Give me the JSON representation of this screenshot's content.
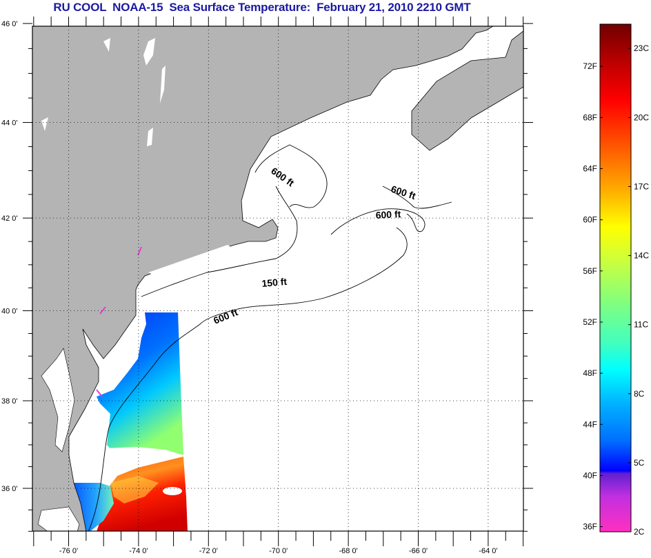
{
  "title": "RU COOL  NOAA-15  Sea Surface Temperature:  February 21, 2010 2210 GMT",
  "map": {
    "lon_range": [
      -77,
      -63
    ],
    "lat_range": [
      35,
      46
    ],
    "lon_labels": [
      {
        "lon": -76,
        "text": "-76 0'"
      },
      {
        "lon": -74,
        "text": "-74 0'"
      },
      {
        "lon": -72,
        "text": "-72 0'"
      },
      {
        "lon": -70,
        "text": "-70 0'"
      },
      {
        "lon": -68,
        "text": "-68 0'"
      },
      {
        "lon": -66,
        "text": "-66 0'"
      },
      {
        "lon": -64,
        "text": "-64 0'"
      }
    ],
    "lat_labels": [
      {
        "lat": 46,
        "text": "46 0'"
      },
      {
        "lat": 44,
        "text": "44 0'"
      },
      {
        "lat": 42,
        "text": "42 0'"
      },
      {
        "lat": 40,
        "text": "40 0'"
      },
      {
        "lat": 38,
        "text": "38 0'"
      },
      {
        "lat": 36,
        "text": "36 0'"
      }
    ],
    "contour_labels": [
      "600 ft",
      "600 ft",
      "600 ft",
      "150 ft",
      "600 ft"
    ],
    "colors": {
      "land": "#b4b4b4",
      "cloud": "#ffffff",
      "title": "#1a1aa0"
    }
  },
  "colorbar": {
    "range_f": [
      35.6,
      75.3
    ],
    "fahrenheit": [
      {
        "value": 36,
        "text": "36F"
      },
      {
        "value": 40,
        "text": "40F"
      },
      {
        "value": 44,
        "text": "44F"
      },
      {
        "value": 48,
        "text": "48F"
      },
      {
        "value": 52,
        "text": "52F"
      },
      {
        "value": 56,
        "text": "56F"
      },
      {
        "value": 60,
        "text": "60F"
      },
      {
        "value": 64,
        "text": "64F"
      },
      {
        "value": 68,
        "text": "68F"
      },
      {
        "value": 72,
        "text": "72F"
      }
    ],
    "celsius": [
      {
        "value": 2,
        "text": "2C"
      },
      {
        "value": 5,
        "text": "5C"
      },
      {
        "value": 8,
        "text": "8C"
      },
      {
        "value": 11,
        "text": "11C"
      },
      {
        "value": 14,
        "text": "14C"
      },
      {
        "value": 17,
        "text": "17C"
      },
      {
        "value": 20,
        "text": "20C"
      },
      {
        "value": 23,
        "text": "23C"
      }
    ]
  }
}
